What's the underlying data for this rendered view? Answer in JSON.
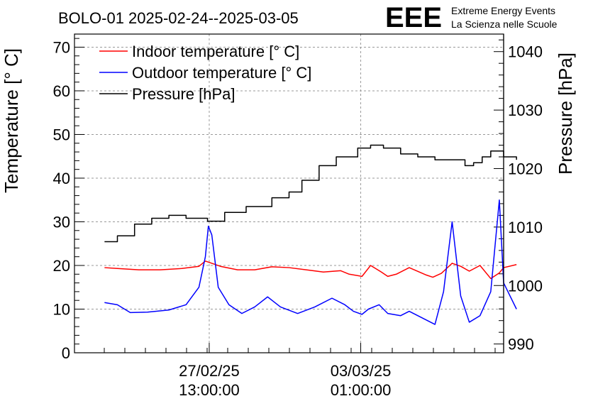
{
  "header": {
    "title": "BOLO-01 2025-02-24--2025-03-05",
    "logo_text": "EEE",
    "logo_caption_1": "Extreme Energy Events",
    "logo_caption_2": "La Scienza nelle Scuole"
  },
  "colors": {
    "indoor": "#ff0000",
    "outdoor": "#0000ff",
    "pressure": "#000000",
    "logo": "#1a1aff"
  },
  "chart_data": {
    "type": "line",
    "title": "BOLO-01 2025-02-24--2025-03-05",
    "ylabel": "Temperature [° C]",
    "y2label": "Pressure [hPa]",
    "ylim": [
      0,
      73
    ],
    "y2lim": [
      988.5,
      1043
    ],
    "yticks": [
      "0",
      "10",
      "20",
      "30",
      "40",
      "50",
      "60",
      "70"
    ],
    "y2ticks": [
      "990",
      "1000",
      "1010",
      "1020",
      "1030",
      "1040"
    ],
    "xlim": [
      0,
      10
    ],
    "x_ticks": [
      {
        "x": 3.14,
        "date": "27/02/25",
        "time": "13:00:00"
      },
      {
        "x": 6.67,
        "date": "03/03/25",
        "time": "01:00:00"
      }
    ],
    "grid": true,
    "legend_position": "top-left",
    "legend": [
      "Indoor temperature [° C]",
      "Outdoor temperature [° C]",
      "Pressure [hPa]"
    ],
    "series": [
      {
        "name": "Indoor temperature [° C]",
        "axis": "left",
        "x": [
          0.7,
          1.0,
          1.5,
          2.0,
          2.5,
          2.9,
          3.05,
          3.2,
          3.4,
          3.8,
          4.2,
          4.6,
          5.0,
          5.4,
          5.8,
          6.2,
          6.4,
          6.7,
          6.9,
          7.15,
          7.3,
          7.5,
          7.8,
          8.2,
          8.35,
          8.55,
          8.8,
          9.0,
          9.2,
          9.45,
          9.7,
          9.9,
          10.0,
          10.3
        ],
        "values": [
          19.5,
          19.3,
          19.0,
          19.0,
          19.3,
          19.8,
          21.0,
          20.5,
          19.8,
          19.0,
          19.0,
          19.7,
          19.5,
          19.0,
          18.5,
          18.8,
          18.0,
          17.5,
          20.0,
          18.5,
          17.5,
          18.0,
          19.5,
          17.8,
          17.3,
          18.2,
          20.5,
          19.8,
          18.7,
          20.0,
          17.0,
          18.3,
          19.5,
          20.2
        ]
      },
      {
        "name": "Outdoor temperature [° C]",
        "axis": "left",
        "x": [
          0.7,
          1.0,
          1.3,
          1.7,
          2.2,
          2.6,
          2.9,
          3.05,
          3.12,
          3.2,
          3.35,
          3.6,
          3.9,
          4.2,
          4.5,
          4.8,
          5.2,
          5.6,
          6.0,
          6.3,
          6.5,
          6.7,
          6.85,
          7.1,
          7.3,
          7.6,
          7.8,
          8.1,
          8.4,
          8.6,
          8.8,
          9.0,
          9.2,
          9.45,
          9.7,
          9.9,
          10.0,
          10.3
        ],
        "values": [
          11.5,
          11.0,
          9.2,
          9.3,
          9.8,
          11.0,
          15.0,
          22.0,
          29.0,
          27.0,
          15.0,
          11.0,
          9.0,
          10.5,
          12.8,
          10.5,
          9.0,
          10.5,
          12.5,
          11.0,
          9.5,
          8.8,
          10.0,
          11.0,
          9.0,
          8.5,
          9.5,
          8.0,
          6.5,
          14.0,
          30.0,
          13.0,
          7.0,
          8.5,
          14.0,
          35.0,
          16.0,
          10.0
        ]
      },
      {
        "name": "Pressure [hPa]",
        "axis": "right",
        "x": [
          0.7,
          1.0,
          1.4,
          1.8,
          2.2,
          2.6,
          3.1,
          3.5,
          4.0,
          4.6,
          5.0,
          5.3,
          5.7,
          6.1,
          6.6,
          6.9,
          7.2,
          7.6,
          8.0,
          8.4,
          8.8,
          9.1,
          9.3,
          9.5,
          9.7,
          10.0,
          10.3
        ],
        "values": [
          1007.5,
          1008.5,
          1010.5,
          1011.5,
          1012.0,
          1011.5,
          1011.0,
          1012.5,
          1013.5,
          1015.0,
          1016.0,
          1018.0,
          1020.5,
          1022.0,
          1023.5,
          1024.0,
          1023.5,
          1022.5,
          1022.0,
          1021.5,
          1021.5,
          1020.5,
          1021.0,
          1022.0,
          1023.0,
          1022.0,
          1021.5
        ]
      }
    ]
  }
}
